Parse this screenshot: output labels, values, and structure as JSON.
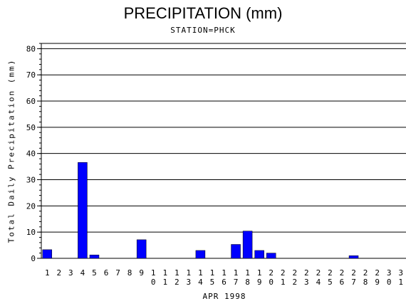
{
  "chart_data": {
    "type": "bar",
    "title": "PRECIPITATION (mm)",
    "subtitle": "STATION=PHCK",
    "xlabel": "APR 1998",
    "ylabel": "Total Daily Precipitation (mm)",
    "ylim": [
      0,
      82
    ],
    "yticks": [
      0,
      10,
      20,
      30,
      40,
      50,
      60,
      70,
      80
    ],
    "grid": true,
    "bar_color": "#0000ff",
    "categories": [
      "1",
      "2",
      "3",
      "4",
      "5",
      "6",
      "7",
      "8",
      "9",
      "10",
      "11",
      "12",
      "13",
      "14",
      "15",
      "16",
      "17",
      "18",
      "19",
      "20",
      "21",
      "22",
      "23",
      "24",
      "25",
      "26",
      "27",
      "28",
      "29",
      "30",
      "31"
    ],
    "values": [
      3.3,
      0,
      0,
      36.6,
      1.3,
      0,
      0,
      0,
      7.1,
      0,
      0,
      0,
      0,
      3.0,
      0,
      0,
      5.3,
      10.4,
      3.0,
      2.0,
      0,
      0,
      0,
      0,
      0,
      0,
      1.0,
      0,
      0,
      0,
      0
    ]
  }
}
